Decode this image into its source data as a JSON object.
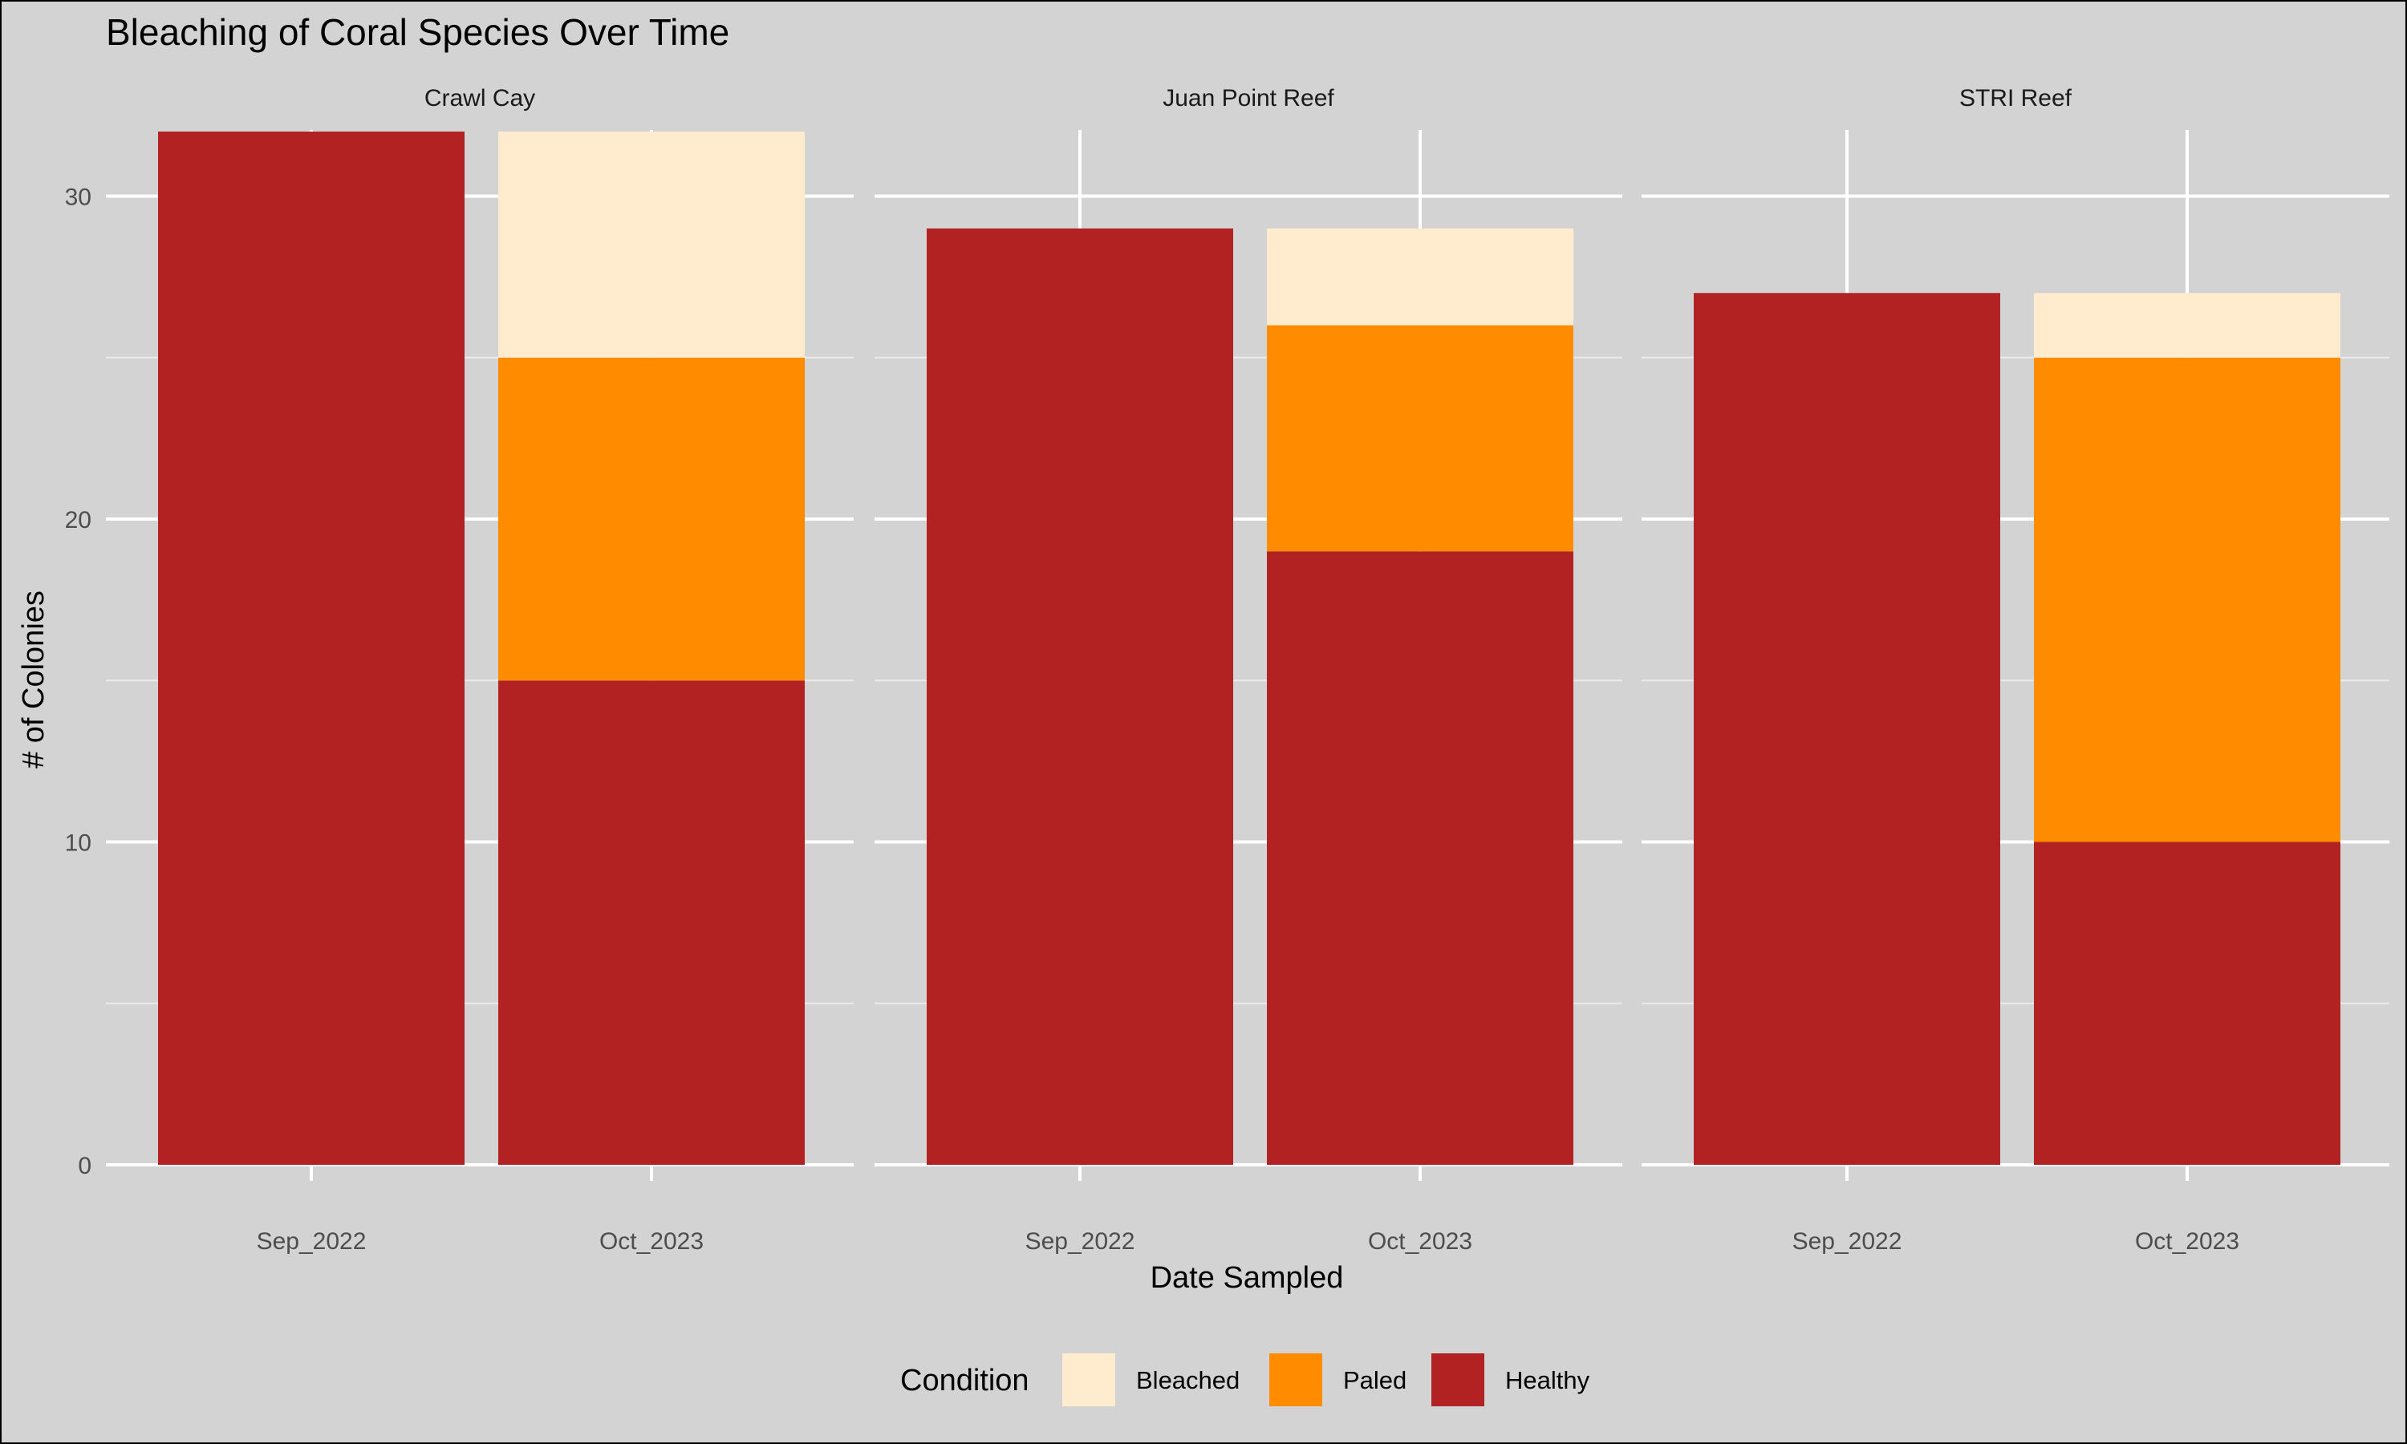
{
  "chart_data": {
    "type": "bar",
    "stacked": true,
    "faceted": true,
    "title": "Bleaching of Coral Species Over Time",
    "xlabel": "Date Sampled",
    "ylabel": "# of Colonies",
    "ylim": [
      0,
      32
    ],
    "yticks": [
      0,
      10,
      20,
      30
    ],
    "categories": [
      "Sep_2022",
      "Oct_2023"
    ],
    "legend": {
      "title": "Condition",
      "position": "bottom",
      "entries": [
        "Bleached",
        "Paled",
        "Healthy"
      ]
    },
    "colors": {
      "background": "#d3d3d3",
      "grid": "#ffffff",
      "Healthy": "#b22222",
      "Paled": "#ff8c00",
      "Bleached": "#ffebcd"
    },
    "stack_order": [
      "Healthy",
      "Paled",
      "Bleached"
    ],
    "panels": [
      {
        "name": "Crawl Cay",
        "series": [
          {
            "name": "Healthy",
            "values": [
              32,
              15
            ]
          },
          {
            "name": "Paled",
            "values": [
              0,
              10
            ]
          },
          {
            "name": "Bleached",
            "values": [
              0,
              7
            ]
          }
        ]
      },
      {
        "name": "Juan Point Reef",
        "series": [
          {
            "name": "Healthy",
            "values": [
              29,
              19
            ]
          },
          {
            "name": "Paled",
            "values": [
              0,
              7
            ]
          },
          {
            "name": "Bleached",
            "values": [
              0,
              3
            ]
          }
        ]
      },
      {
        "name": "STRI Reef",
        "series": [
          {
            "name": "Healthy",
            "values": [
              27,
              10
            ]
          },
          {
            "name": "Paled",
            "values": [
              0,
              15
            ]
          },
          {
            "name": "Bleached",
            "values": [
              0,
              2
            ]
          }
        ]
      }
    ]
  }
}
